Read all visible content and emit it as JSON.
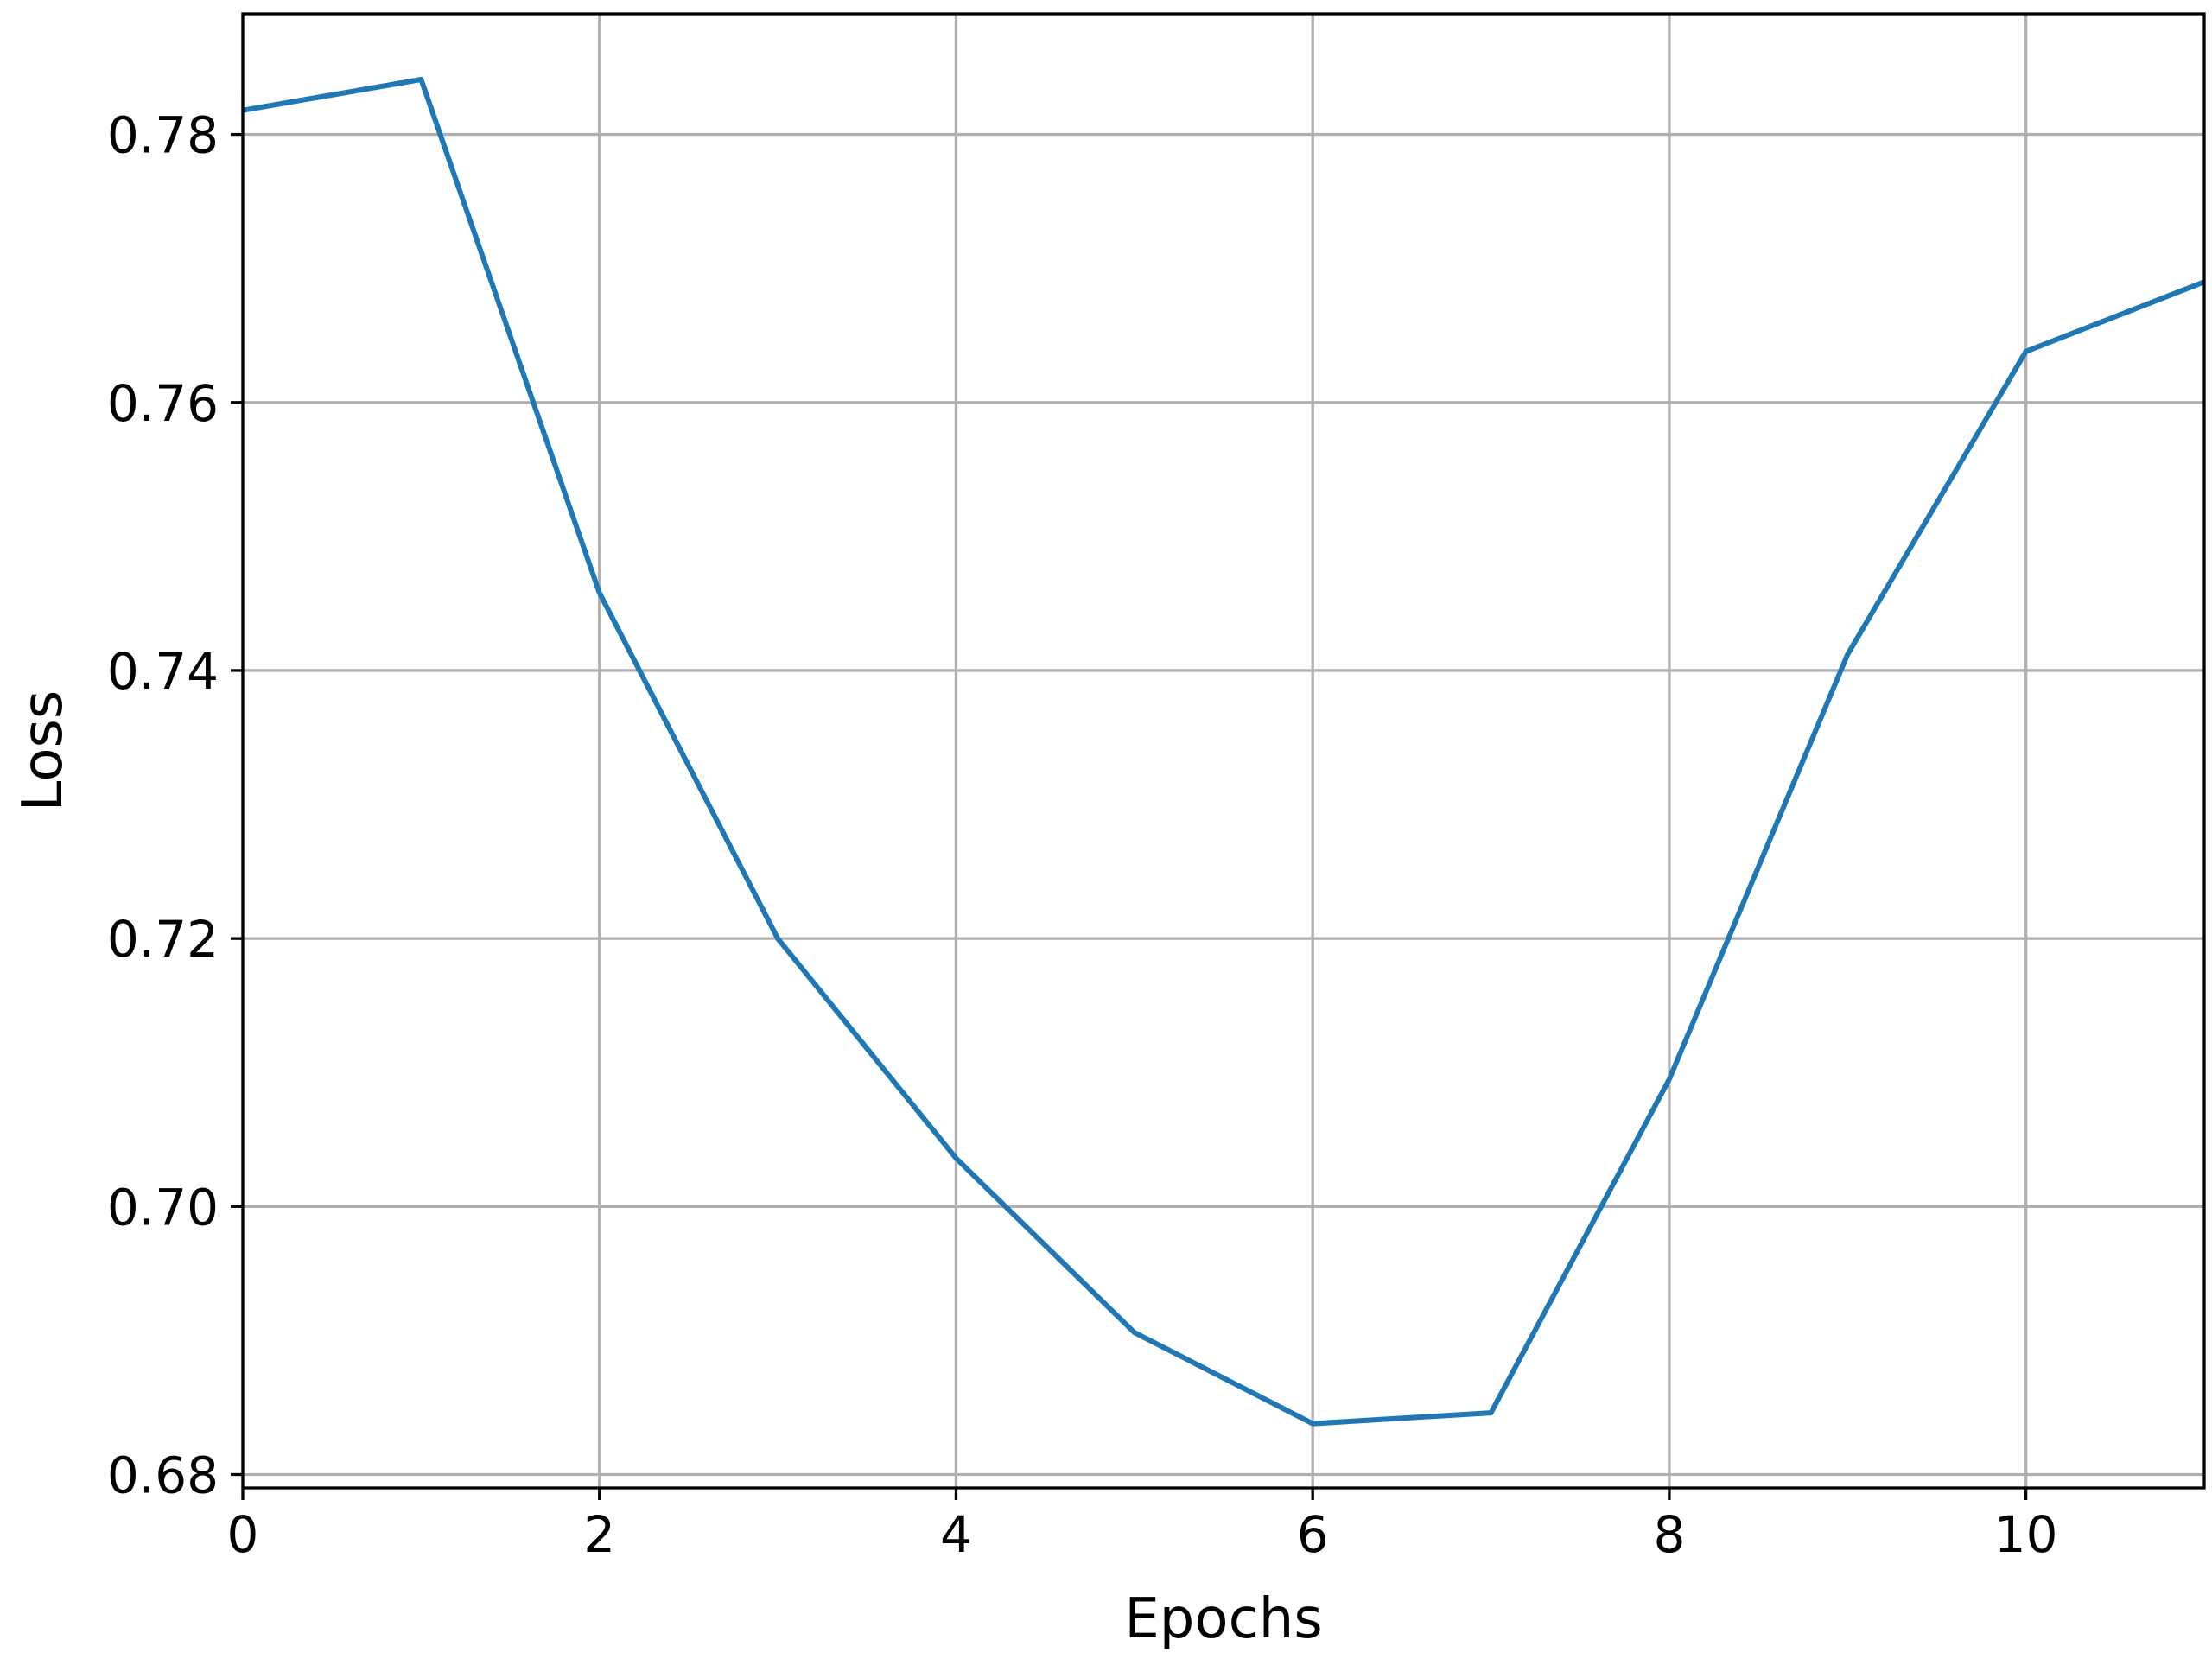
{
  "chart_data": {
    "type": "line",
    "title": "",
    "xlabel": "Epochs",
    "ylabel": "Loss",
    "xlim": [
      0,
      11
    ],
    "ylim": [
      0.679,
      0.789
    ],
    "xticks": [
      0,
      2,
      4,
      6,
      8,
      10
    ],
    "xtick_labels": [
      "0",
      "2",
      "4",
      "6",
      "8",
      "10"
    ],
    "yticks": [
      0.68,
      0.7,
      0.72,
      0.74,
      0.76,
      0.78
    ],
    "ytick_labels": [
      "0.68",
      "0.70",
      "0.72",
      "0.74",
      "0.76",
      "0.78"
    ],
    "grid": true,
    "legend": false,
    "series": [
      {
        "color": "#1f77b4",
        "x": [
          0,
          1,
          2,
          3,
          4,
          5,
          6,
          7,
          8,
          9,
          10,
          11
        ],
        "y": [
          0.7818,
          0.7841,
          0.7458,
          0.72,
          0.7036,
          0.6906,
          0.6838,
          0.6846,
          0.7095,
          0.7412,
          0.7638,
          0.769
        ]
      }
    ]
  }
}
